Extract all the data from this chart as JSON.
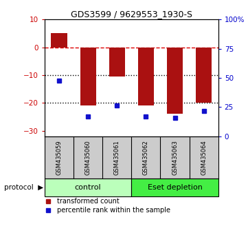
{
  "title": "GDS3599 / 9629553_1930-S",
  "categories": [
    "GSM435059",
    "GSM435060",
    "GSM435061",
    "GSM435062",
    "GSM435063",
    "GSM435064"
  ],
  "red_bars": [
    5.0,
    -21.0,
    -10.5,
    -21.0,
    -24.0,
    -20.0
  ],
  "blue_dots": [
    -12.0,
    -25.0,
    -21.0,
    -25.0,
    -25.5,
    -23.0
  ],
  "ylim_left": [
    -32,
    10
  ],
  "ylim_right": [
    0,
    100
  ],
  "yticks_left": [
    10,
    0,
    -10,
    -20,
    -30
  ],
  "yticks_right": [
    100,
    75,
    50,
    25,
    0
  ],
  "hlines": [
    0,
    -10,
    -20
  ],
  "hline_styles": [
    "dashed",
    "dotted",
    "dotted"
  ],
  "hline_colors": [
    "#dd0000",
    "black",
    "black"
  ],
  "bar_color": "#aa1111",
  "dot_color": "#1111cc",
  "group_labels": [
    "control",
    "Eset depletion"
  ],
  "group_colors": [
    "#bbffbb",
    "#44ee44"
  ],
  "group_ranges": [
    [
      0,
      3
    ],
    [
      3,
      6
    ]
  ],
  "protocol_label": "protocol",
  "legend_red": "transformed count",
  "legend_blue": "percentile rank within the sample",
  "tick_color_left": "#cc0000",
  "tick_color_right": "#0000cc",
  "bar_width": 0.55
}
